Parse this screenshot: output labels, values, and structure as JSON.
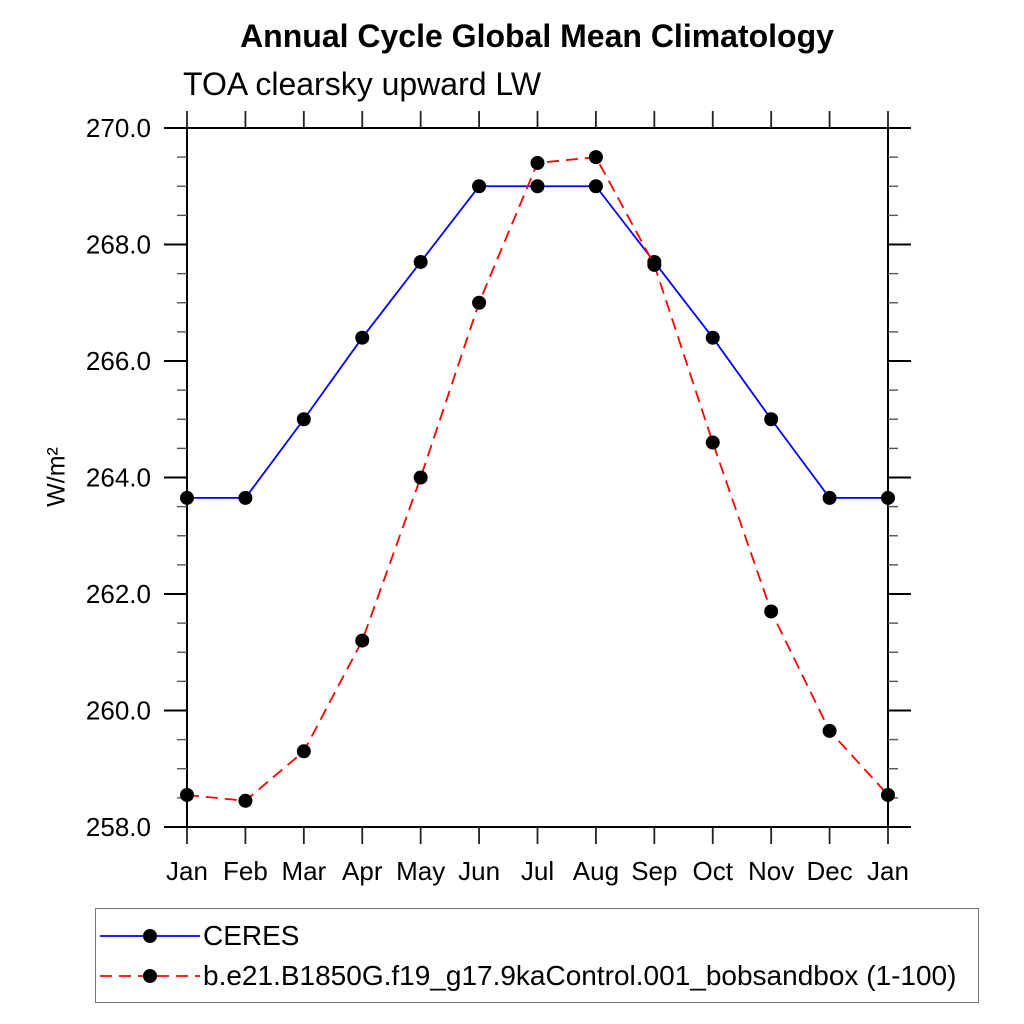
{
  "title": "Annual Cycle Global Mean Climatology",
  "subtitle": "TOA clearsky upward LW",
  "chart_data": {
    "type": "line",
    "x_categories": [
      "Jan",
      "Feb",
      "Mar",
      "Apr",
      "May",
      "Jun",
      "Jul",
      "Aug",
      "Sep",
      "Oct",
      "Nov",
      "Dec",
      "Jan"
    ],
    "ylabel": "W/m²",
    "ylim": [
      258.0,
      270.0
    ],
    "y_major_ticks": [
      {
        "value": 258.0,
        "label": "258.0"
      },
      {
        "value": 260.0,
        "label": "260.0"
      },
      {
        "value": 262.0,
        "label": "262.0"
      },
      {
        "value": 264.0,
        "label": "264.0"
      },
      {
        "value": 266.0,
        "label": "266.0"
      },
      {
        "value": 268.0,
        "label": "268.0"
      },
      {
        "value": 270.0,
        "label": "270.0"
      }
    ],
    "y_minor_tick_step": 0.5,
    "grid": "off",
    "legend_position": "bottom-left-box",
    "marker": {
      "shape": "filled-circle",
      "color": "#000000"
    },
    "series": [
      {
        "name": "CERES",
        "color": "#0000ff",
        "line_style": "solid",
        "values": [
          263.65,
          263.65,
          265.0,
          266.4,
          267.7,
          269.0,
          269.0,
          269.0,
          267.7,
          266.4,
          265.0,
          263.65,
          263.65
        ]
      },
      {
        "name": "b.e21.B1850G.f19_g17.9kaControl.001_bobsandbox (1-100)",
        "color": "#ff0000",
        "line_style": "dashed",
        "values": [
          258.55,
          258.45,
          259.3,
          261.2,
          264.0,
          267.0,
          269.4,
          269.5,
          267.65,
          264.6,
          261.7,
          259.65,
          258.55
        ]
      }
    ]
  },
  "colors": {
    "background": "#ffffff",
    "axis": "#000000",
    "ceres_line": "#0000ff",
    "model_line": "#ff0000",
    "marker": "#000000"
  }
}
